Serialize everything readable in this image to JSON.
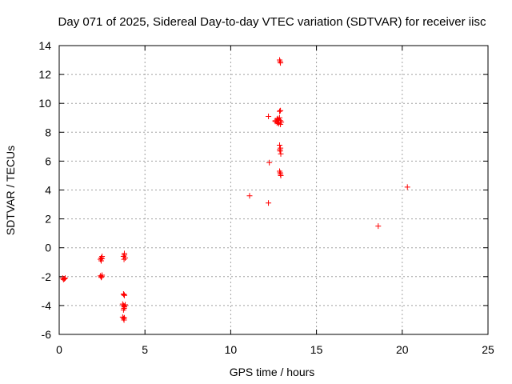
{
  "chart_data": {
    "type": "scatter",
    "title": "Day 071 of 2025, Sidereal Day-to-day VTEC variation (SDTVAR) for receiver iisc",
    "xlabel": "GPS time / hours",
    "ylabel": "SDTVAR / TECUs",
    "xlim": [
      0,
      25
    ],
    "ylim": [
      -6,
      14
    ],
    "xticks": [
      0,
      5,
      10,
      15,
      20,
      25
    ],
    "yticks": [
      -6,
      -4,
      -2,
      0,
      2,
      4,
      6,
      8,
      10,
      12,
      14
    ],
    "grid": true,
    "marker": "+",
    "color": "#ff0000",
    "series": [
      {
        "name": "SDTVAR",
        "points": [
          [
            0.2,
            -2.1
          ],
          [
            0.25,
            -2.2
          ],
          [
            0.3,
            -2.15
          ],
          [
            0.35,
            -2.1
          ],
          [
            2.4,
            -0.8
          ],
          [
            2.45,
            -0.7
          ],
          [
            2.5,
            -0.6
          ],
          [
            2.45,
            -0.9
          ],
          [
            2.5,
            -0.75
          ],
          [
            2.4,
            -1.95
          ],
          [
            2.45,
            -2.05
          ],
          [
            2.5,
            -1.9
          ],
          [
            2.48,
            -2.0
          ],
          [
            3.75,
            -0.6
          ],
          [
            3.8,
            -0.5
          ],
          [
            3.85,
            -0.7
          ],
          [
            3.8,
            -0.4
          ],
          [
            3.78,
            -0.8
          ],
          [
            3.75,
            -3.2
          ],
          [
            3.8,
            -3.3
          ],
          [
            3.78,
            -3.25
          ],
          [
            3.7,
            -3.9
          ],
          [
            3.75,
            -4.0
          ],
          [
            3.8,
            -4.1
          ],
          [
            3.85,
            -3.95
          ],
          [
            3.78,
            -4.2
          ],
          [
            3.75,
            -4.3
          ],
          [
            3.8,
            -4.05
          ],
          [
            3.7,
            -4.8
          ],
          [
            3.75,
            -4.9
          ],
          [
            3.8,
            -4.85
          ],
          [
            3.78,
            -5.0
          ],
          [
            11.1,
            3.6
          ],
          [
            12.2,
            3.1
          ],
          [
            12.25,
            5.9
          ],
          [
            12.2,
            9.1
          ],
          [
            12.6,
            8.8
          ],
          [
            12.7,
            8.9
          ],
          [
            12.75,
            8.7
          ],
          [
            12.8,
            8.6
          ],
          [
            12.85,
            9.0
          ],
          [
            12.9,
            8.8
          ],
          [
            12.95,
            8.7
          ],
          [
            12.7,
            8.65
          ],
          [
            12.8,
            8.85
          ],
          [
            12.9,
            8.55
          ],
          [
            12.6,
            8.75
          ],
          [
            12.75,
            8.95
          ],
          [
            12.85,
            9.45
          ],
          [
            12.9,
            9.5
          ],
          [
            12.85,
            7.1
          ],
          [
            12.9,
            6.9
          ],
          [
            12.88,
            6.7
          ],
          [
            12.92,
            6.5
          ],
          [
            12.86,
            6.8
          ],
          [
            12.85,
            5.3
          ],
          [
            12.9,
            5.1
          ],
          [
            12.88,
            5.2
          ],
          [
            12.92,
            5.0
          ],
          [
            12.85,
            13.0
          ],
          [
            12.9,
            12.8
          ],
          [
            12.88,
            12.9
          ],
          [
            18.6,
            1.5
          ],
          [
            20.3,
            4.2
          ]
        ]
      }
    ]
  }
}
